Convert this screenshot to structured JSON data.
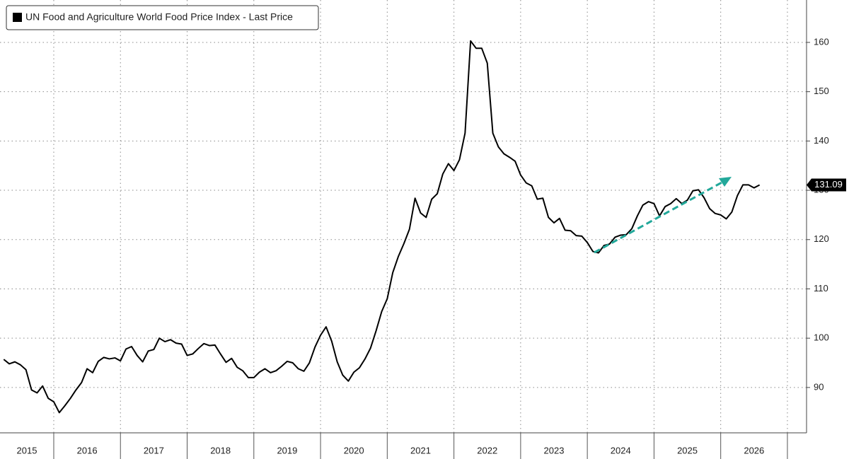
{
  "chart_data": {
    "type": "line",
    "title": "UN Food and Agriculture World Food Price Index - Last Price",
    "xlim": [
      2015.194,
      2027.287
    ],
    "xticks": [
      2016,
      2017,
      2018,
      2019,
      2020,
      2021,
      2022,
      2023,
      2024,
      2025,
      2026,
      2027
    ],
    "year_labels": [
      2015,
      2016,
      2017,
      2018,
      2019,
      2020,
      2021,
      2022,
      2023,
      2024,
      2025,
      2026
    ],
    "ylim": [
      80.8,
      168.6
    ],
    "yticks": [
      90,
      100,
      110,
      120,
      130,
      140,
      150,
      160
    ],
    "grid": true,
    "x": [
      2015.25,
      2015.333,
      2015.417,
      2015.5,
      2015.583,
      2015.667,
      2015.75,
      2015.833,
      2015.917,
      2016,
      2016.083,
      2016.167,
      2016.25,
      2016.333,
      2016.417,
      2016.5,
      2016.583,
      2016.667,
      2016.75,
      2016.833,
      2016.917,
      2017,
      2017.083,
      2017.167,
      2017.25,
      2017.333,
      2017.417,
      2017.5,
      2017.583,
      2017.667,
      2017.75,
      2017.833,
      2017.917,
      2018,
      2018.083,
      2018.167,
      2018.25,
      2018.333,
      2018.417,
      2018.5,
      2018.583,
      2018.667,
      2018.75,
      2018.833,
      2018.917,
      2019,
      2019.083,
      2019.167,
      2019.25,
      2019.333,
      2019.417,
      2019.5,
      2019.583,
      2019.667,
      2019.75,
      2019.833,
      2019.917,
      2020,
      2020.083,
      2020.167,
      2020.25,
      2020.333,
      2020.417,
      2020.5,
      2020.583,
      2020.667,
      2020.75,
      2020.833,
      2020.917,
      2021,
      2021.083,
      2021.167,
      2021.25,
      2021.333,
      2021.417,
      2021.5,
      2021.583,
      2021.667,
      2021.75,
      2021.833,
      2021.917,
      2022,
      2022.083,
      2022.167,
      2022.25,
      2022.333,
      2022.417,
      2022.5,
      2022.583,
      2022.667,
      2022.75,
      2022.833,
      2022.917,
      2023,
      2023.083,
      2023.167,
      2023.25,
      2023.333,
      2023.417,
      2023.5,
      2023.583,
      2023.667,
      2023.75,
      2023.833,
      2023.917,
      2024,
      2024.083,
      2024.167,
      2024.25,
      2024.333,
      2024.417,
      2024.5,
      2024.583,
      2024.667,
      2024.75,
      2024.833,
      2024.917,
      2025,
      2025.083,
      2025.167,
      2025.25,
      2025.333,
      2025.417,
      2025.5,
      2025.583,
      2025.667,
      2025.75,
      2025.833,
      2025.917,
      2026,
      2026.083,
      2026.167,
      2026.25,
      2026.333,
      2026.417,
      2026.5,
      2026.583
    ],
    "series": [
      {
        "name": "UN Food and Agriculture World Food Price Index - Last Price",
        "color": "#000000",
        "values": [
          95.7,
          94.8,
          95.2,
          94.6,
          93.6,
          89.5,
          88.9,
          90.3,
          87.8,
          87.1,
          84.9,
          86.3,
          87.8,
          89.5,
          91.0,
          93.8,
          93.0,
          95.3,
          96.1,
          95.8,
          96.0,
          95.4,
          97.8,
          98.3,
          96.5,
          95.2,
          97.4,
          97.7,
          100.0,
          99.3,
          99.7,
          99.0,
          98.8,
          96.5,
          96.8,
          97.9,
          98.9,
          98.5,
          98.6,
          96.8,
          95.1,
          95.9,
          94.1,
          93.4,
          92.0,
          92.0,
          93.1,
          93.8,
          93.0,
          93.4,
          94.3,
          95.3,
          95.0,
          93.8,
          93.3,
          95.0,
          98.2,
          100.6,
          102.3,
          99.4,
          95.2,
          92.5,
          91.3,
          93.1,
          94.0,
          95.8,
          98.0,
          101.5,
          105.4,
          108.0,
          113.3,
          116.6,
          119.2,
          122.1,
          128.4,
          125.4,
          124.5,
          128.2,
          129.3,
          133.3,
          135.4,
          134.0,
          136.2,
          141.6,
          160.3,
          158.8,
          158.8,
          155.8,
          141.6,
          138.8,
          137.4,
          136.7,
          135.9,
          133.1,
          131.5,
          130.9,
          128.2,
          128.4,
          124.5,
          123.4,
          124.3,
          121.9,
          121.8,
          120.8,
          120.7,
          119.4,
          117.6,
          117.3,
          118.8,
          119.1,
          120.5,
          120.9,
          121.0,
          122.2,
          124.8,
          127.0,
          127.7,
          127.3,
          124.8,
          126.7,
          127.3,
          128.3,
          127.3,
          128.0,
          129.9,
          130.1,
          128.5,
          126.3,
          125.3,
          125.0,
          124.2,
          125.6,
          128.9,
          131.1,
          131.1,
          130.5,
          131.09
        ]
      }
    ]
  }
}
